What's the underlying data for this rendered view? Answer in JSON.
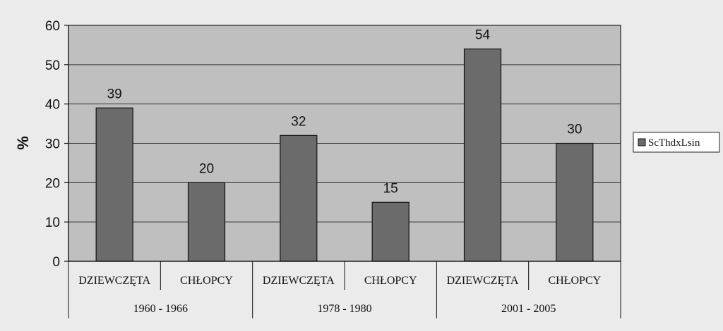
{
  "chart_data": {
    "type": "bar",
    "categories": [
      "DZIEWCZĘTA",
      "CHŁOPCY",
      "DZIEWCZĘTA",
      "CHŁOPCY",
      "DZIEWCZĘTA",
      "CHŁOPCY"
    ],
    "groups": [
      "1960 - 1966",
      "1978 - 1980",
      "2001 - 2005"
    ],
    "series": [
      {
        "name": "ScThdxLsin",
        "values": [
          39,
          20,
          32,
          15,
          54,
          30
        ]
      }
    ],
    "ylabel": "%",
    "xlabel": "",
    "ylim": [
      0,
      60
    ],
    "yticks": [
      0,
      10,
      20,
      30,
      40,
      50,
      60
    ],
    "grid": true,
    "legend_position": "right",
    "colors": {
      "bar": "#6b6b6b",
      "plot_bg": "#bfbfbf",
      "page_bg": "#ebebeb"
    }
  }
}
